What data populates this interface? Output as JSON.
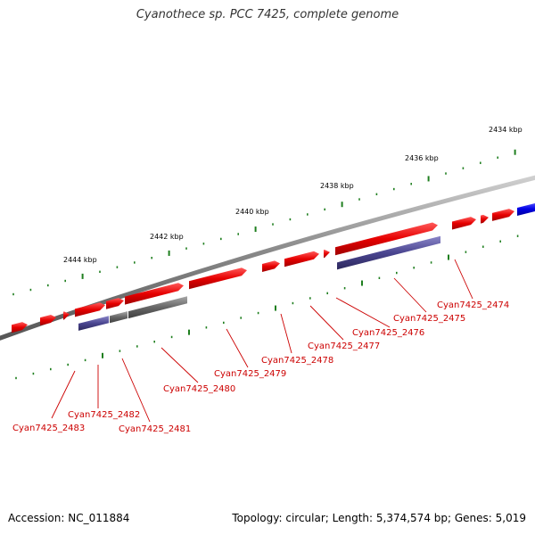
{
  "title": "Cyanothece sp. PCC 7425, complete genome",
  "footer": {
    "accession": "Accession: NC_011884",
    "topology": "Topology: circular; Length: 5,374,574 bp; Genes: 5,019"
  },
  "scale_labels": [
    "2434 kbp",
    "2436 kbp",
    "2438 kbp",
    "2440 kbp",
    "2442 kbp",
    "2444 kbp"
  ],
  "gene_labels": [
    "Cyan7425_2474",
    "Cyan7425_2475",
    "Cyan7425_2476",
    "Cyan7425_2477",
    "Cyan7425_2478",
    "Cyan7425_2479",
    "Cyan7425_2480",
    "Cyan7425_2481",
    "Cyan7425_2482",
    "Cyan7425_2483"
  ],
  "colors": {
    "forward_cds": "#e60000",
    "reverse_feature": "#4a4590",
    "other_feature": "#666666",
    "blue_feature": "#0000e6",
    "backbone": "#7f7f7f",
    "tick": "#1f7f1f",
    "label": "#cc0000"
  }
}
